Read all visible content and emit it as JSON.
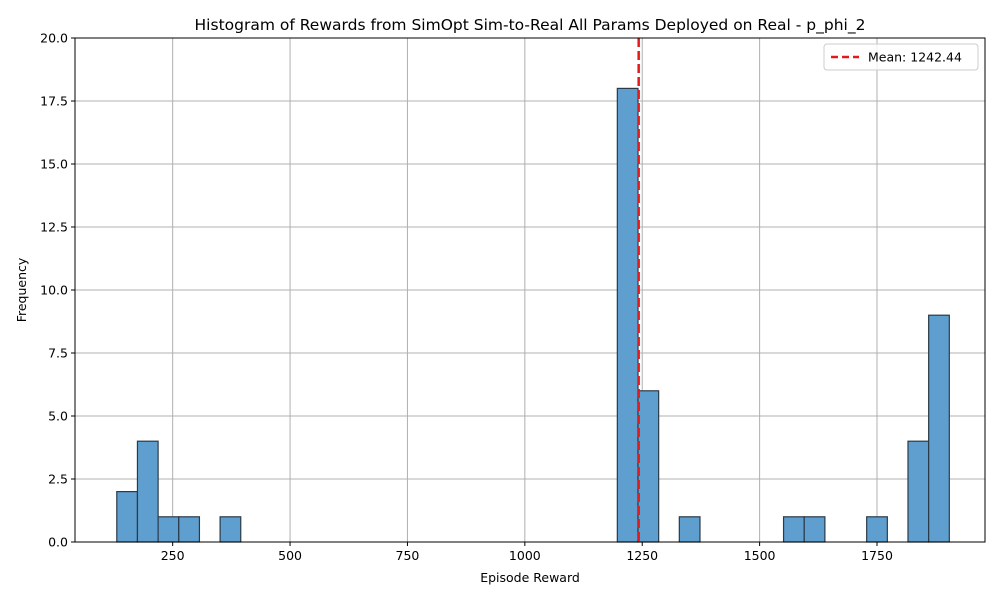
{
  "chart_data": {
    "type": "bar",
    "title": "Histogram of Rewards from SimOpt Sim-to-Real All Params Deployed on Real - p_phi_2",
    "xlabel": "Episode Reward",
    "ylabel": "Frequency",
    "xlim": [
      42,
      1980
    ],
    "ylim": [
      0,
      20
    ],
    "x_ticks": [
      250,
      500,
      750,
      1000,
      1250,
      1500,
      1750
    ],
    "x_tick_labels": [
      "250",
      "500",
      "750",
      "1000",
      "1250",
      "1500",
      "1750"
    ],
    "y_ticks": [
      0,
      2.5,
      5,
      7.5,
      10,
      12.5,
      15,
      17.5,
      20
    ],
    "y_tick_labels": [
      "0.0",
      "2.5",
      "5.0",
      "7.5",
      "10.0",
      "12.5",
      "15.0",
      "17.5",
      "20.0"
    ],
    "grid": true,
    "bins": [
      {
        "x0": 131,
        "x1": 175,
        "count": 2
      },
      {
        "x0": 175,
        "x1": 219,
        "count": 4
      },
      {
        "x0": 219,
        "x1": 263,
        "count": 1
      },
      {
        "x0": 263,
        "x1": 307,
        "count": 1
      },
      {
        "x0": 351,
        "x1": 395,
        "count": 1
      },
      {
        "x0": 1197,
        "x1": 1241,
        "count": 18
      },
      {
        "x0": 1241,
        "x1": 1285,
        "count": 6
      },
      {
        "x0": 1329,
        "x1": 1373,
        "count": 1
      },
      {
        "x0": 1551,
        "x1": 1595,
        "count": 1
      },
      {
        "x0": 1595,
        "x1": 1639,
        "count": 1
      },
      {
        "x0": 1728,
        "x1": 1772,
        "count": 1
      },
      {
        "x0": 1816,
        "x1": 1860,
        "count": 4
      },
      {
        "x0": 1860,
        "x1": 1904,
        "count": 9
      }
    ],
    "mean_line": {
      "value": 1242.44,
      "label": "Mean: 1242.44"
    },
    "legend": {
      "position": "top-right",
      "entries": [
        "Mean: 1242.44"
      ]
    },
    "colors": {
      "bar_fill": "#5f9fcf",
      "bar_edge": "#2a3a48",
      "mean_line": "#e31a1c",
      "grid": "#b0b0b0",
      "axes": "#000000"
    }
  }
}
